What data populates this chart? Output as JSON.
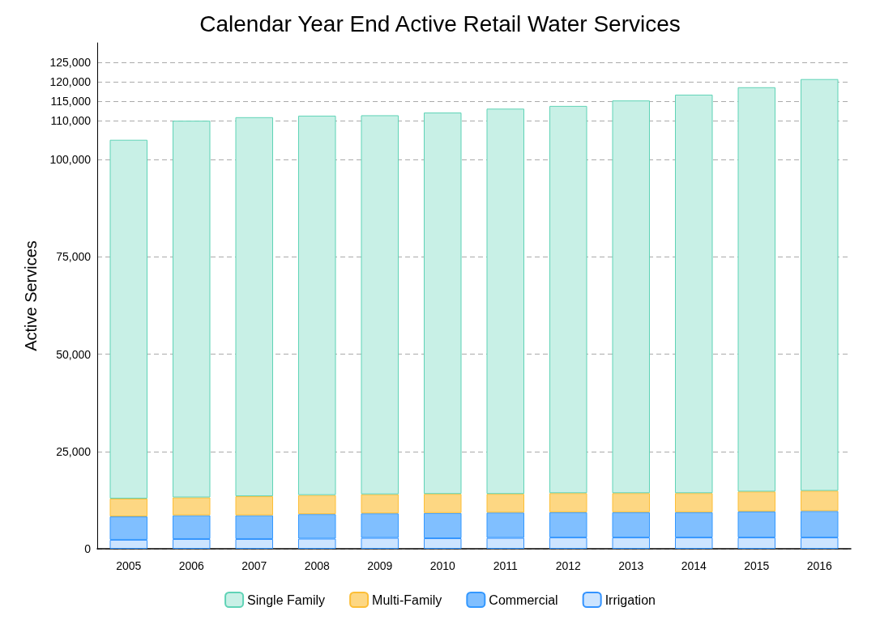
{
  "chart_data": {
    "type": "bar",
    "title": "Calendar Year End Active Retail Water Services",
    "ylabel": "Active Services",
    "categories": [
      "2005",
      "2006",
      "2007",
      "2008",
      "2009",
      "2010",
      "2011",
      "2012",
      "2013",
      "2014",
      "2015",
      "2016"
    ],
    "stacked": true,
    "series": [
      {
        "name": "Irrigation",
        "color": "#cce4ff",
        "values": [
          2300,
          2500,
          2500,
          2600,
          2800,
          2700,
          2800,
          2900,
          2900,
          2900,
          2900,
          2900
        ]
      },
      {
        "name": "Commercial",
        "color": "#80bfff",
        "values": [
          6000,
          6100,
          6100,
          6300,
          6300,
          6500,
          6500,
          6500,
          6500,
          6500,
          6700,
          6800
        ]
      },
      {
        "name": "Multi-Family",
        "color": "#fdd783",
        "values": [
          4600,
          4600,
          4900,
          4900,
          4900,
          4900,
          4800,
          4900,
          4900,
          4900,
          5100,
          5200
        ]
      },
      {
        "name": "Single Family",
        "color": "#c8f0e6",
        "values": [
          92200,
          96800,
          97400,
          97500,
          97400,
          98000,
          99000,
          99500,
          100900,
          102400,
          103900,
          105800
        ]
      }
    ],
    "ylim": [
      0,
      130000
    ],
    "yticks": [
      0,
      {
        "value": 25000,
        "label": "25,000"
      },
      {
        "value": 50000,
        "label": "50,000"
      },
      {
        "value": 75000,
        "label": "75,000"
      },
      {
        "value": 100000,
        "label": "100,000"
      },
      {
        "value": 110000,
        "label": "110,000"
      },
      {
        "value": 115000,
        "label": "115,000"
      },
      {
        "value": 120000,
        "label": "120,000"
      },
      {
        "value": 125000,
        "label": "125,000"
      }
    ],
    "grid": "y",
    "legend": "bottom"
  }
}
